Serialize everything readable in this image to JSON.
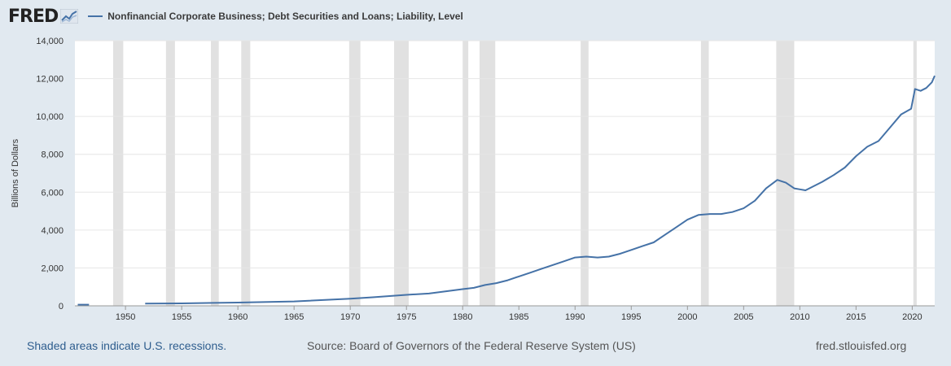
{
  "header": {
    "logo_text": "FRED",
    "series_label": "Nonfinancial Corporate Business; Debt Securities and Loans; Liability, Level"
  },
  "footer": {
    "recession_note": "Shaded areas indicate U.S. recessions.",
    "source": "Source: Board of Governors of the Federal Reserve System (US)",
    "site": "fred.stlouisfed.org"
  },
  "colors": {
    "line": "#4572a7",
    "recession": "#e1e1e1",
    "background": "#e1e9f0",
    "plot_background": "#ffffff",
    "grid": "#e6e6e6"
  },
  "chart_data": {
    "type": "line",
    "ylabel": "Billions of Dollars",
    "xlim": [
      1945.5,
      2022.0
    ],
    "ylim": [
      0,
      14000
    ],
    "y_ticks": [
      0,
      2000,
      4000,
      6000,
      8000,
      10000,
      12000,
      14000
    ],
    "y_tick_labels": [
      "0",
      "2,000",
      "4,000",
      "6,000",
      "8,000",
      "10,000",
      "12,000",
      "14,000"
    ],
    "x_ticks": [
      1950,
      1955,
      1960,
      1965,
      1970,
      1975,
      1980,
      1985,
      1990,
      1995,
      2000,
      2005,
      2010,
      2015,
      2020
    ],
    "x_tick_labels": [
      "1950",
      "1955",
      "1960",
      "1965",
      "1970",
      "1975",
      "1980",
      "1985",
      "1990",
      "1995",
      "2000",
      "2005",
      "2010",
      "2015",
      "2020"
    ],
    "grid": true,
    "recessions": [
      [
        1948.9,
        1949.8
      ],
      [
        1953.6,
        1954.4
      ],
      [
        1957.6,
        1958.3
      ],
      [
        1960.3,
        1961.1
      ],
      [
        1969.9,
        1970.9
      ],
      [
        1973.9,
        1975.2
      ],
      [
        1980.0,
        1980.5
      ],
      [
        1981.5,
        1982.9
      ],
      [
        1990.5,
        1991.2
      ],
      [
        2001.2,
        2001.9
      ],
      [
        2007.9,
        2009.5
      ],
      [
        2020.1,
        2020.4
      ]
    ],
    "series": [
      {
        "segments": [
          {
            "x": [
              1945.75,
              1946.75
            ],
            "y": [
              60,
              60
            ]
          },
          {
            "x": [
              1951.75,
              1955,
              1960,
              1965,
              1970,
              1972,
              1975,
              1977,
              1980,
              1981,
              1982,
              1983,
              1984,
              1985,
              1986,
              1987,
              1988,
              1989,
              1990,
              1991,
              1992,
              1993,
              1994,
              1995,
              1996,
              1997,
              1998,
              1999,
              2000,
              2001,
              2002,
              2003,
              2004,
              2005,
              2006,
              2007,
              2008,
              2008.75,
              2009.5,
              2010,
              2010.5,
              2011,
              2012,
              2013,
              2014,
              2015,
              2016,
              2017,
              2018,
              2019,
              2019.9,
              2020.25,
              2020.75,
              2021.25,
              2021.75,
              2022.0
            ],
            "y": [
              120,
              130,
              170,
              230,
              380,
              450,
              580,
              650,
              880,
              950,
              1100,
              1200,
              1350,
              1550,
              1750,
              1950,
              2150,
              2350,
              2550,
              2600,
              2550,
              2600,
              2750,
              2950,
              3150,
              3350,
              3750,
              4150,
              4550,
              4800,
              4850,
              4850,
              4950,
              5150,
              5550,
              6200,
              6650,
              6500,
              6200,
              6150,
              6100,
              6250,
              6550,
              6900,
              7300,
              7900,
              8400,
              8700,
              9400,
              10100,
              10400,
              11450,
              11350,
              11500,
              11800,
              12150
            ]
          }
        ]
      }
    ]
  }
}
